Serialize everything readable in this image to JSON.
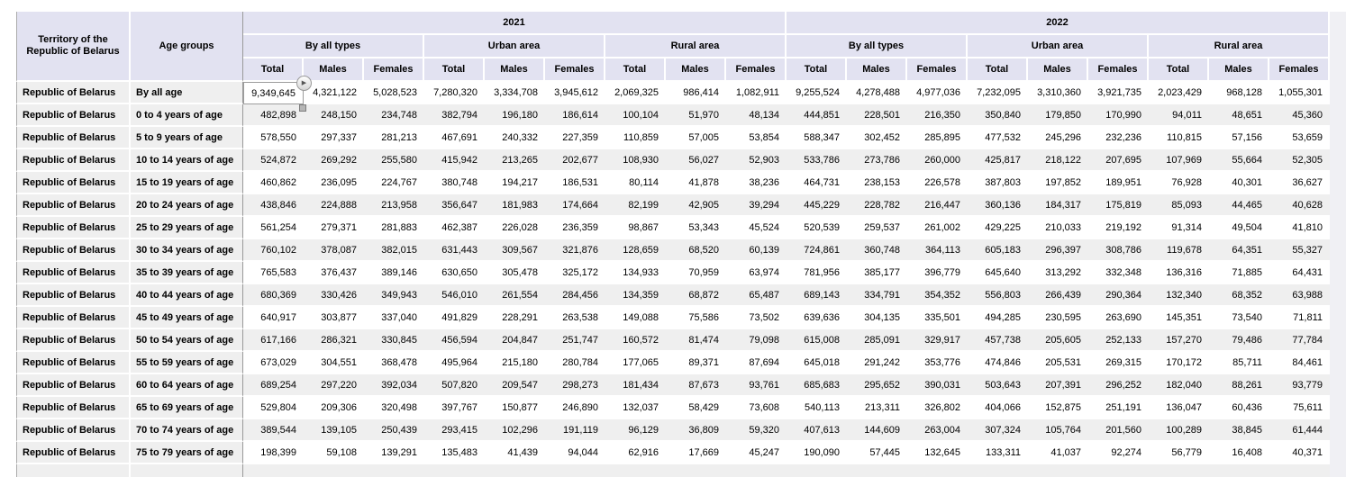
{
  "grid": {
    "corner": {
      "territory_header": "Territory of the Republic of Belarus",
      "age_groups_header": "Age groups"
    },
    "years": [
      {
        "label": "2021",
        "areas": [
          "By all types",
          "Urban area",
          "Rural area"
        ]
      },
      {
        "label": "2022",
        "areas": [
          "By all types",
          "Urban area",
          "Rural area"
        ]
      }
    ],
    "measures": [
      "Total",
      "Males",
      "Females"
    ],
    "rows": [
      {
        "territory": "Republic of Belarus",
        "age_group": "By all age",
        "values": [
          "9,349,645",
          "4,321,122",
          "5,028,523",
          "7,280,320",
          "3,334,708",
          "3,945,612",
          "2,069,325",
          "986,414",
          "1,082,911",
          "9,255,524",
          "4,278,488",
          "4,977,036",
          "7,232,095",
          "3,310,360",
          "3,921,735",
          "2,023,429",
          "968,128",
          "1,055,301"
        ]
      },
      {
        "territory": "Republic of Belarus",
        "age_group": "0 to 4 years of age",
        "values": [
          "482,898",
          "248,150",
          "234,748",
          "382,794",
          "196,180",
          "186,614",
          "100,104",
          "51,970",
          "48,134",
          "444,851",
          "228,501",
          "216,350",
          "350,840",
          "179,850",
          "170,990",
          "94,011",
          "48,651",
          "45,360"
        ]
      },
      {
        "territory": "Republic of Belarus",
        "age_group": "5 to 9 years of age",
        "values": [
          "578,550",
          "297,337",
          "281,213",
          "467,691",
          "240,332",
          "227,359",
          "110,859",
          "57,005",
          "53,854",
          "588,347",
          "302,452",
          "285,895",
          "477,532",
          "245,296",
          "232,236",
          "110,815",
          "57,156",
          "53,659"
        ]
      },
      {
        "territory": "Republic of Belarus",
        "age_group": "10 to 14 years of age",
        "values": [
          "524,872",
          "269,292",
          "255,580",
          "415,942",
          "213,265",
          "202,677",
          "108,930",
          "56,027",
          "52,903",
          "533,786",
          "273,786",
          "260,000",
          "425,817",
          "218,122",
          "207,695",
          "107,969",
          "55,664",
          "52,305"
        ]
      },
      {
        "territory": "Republic of Belarus",
        "age_group": "15 to 19 years of age",
        "values": [
          "460,862",
          "236,095",
          "224,767",
          "380,748",
          "194,217",
          "186,531",
          "80,114",
          "41,878",
          "38,236",
          "464,731",
          "238,153",
          "226,578",
          "387,803",
          "197,852",
          "189,951",
          "76,928",
          "40,301",
          "36,627"
        ]
      },
      {
        "territory": "Republic of Belarus",
        "age_group": "20 to 24 years of age",
        "values": [
          "438,846",
          "224,888",
          "213,958",
          "356,647",
          "181,983",
          "174,664",
          "82,199",
          "42,905",
          "39,294",
          "445,229",
          "228,782",
          "216,447",
          "360,136",
          "184,317",
          "175,819",
          "85,093",
          "44,465",
          "40,628"
        ]
      },
      {
        "territory": "Republic of Belarus",
        "age_group": "25 to 29 years of age",
        "values": [
          "561,254",
          "279,371",
          "281,883",
          "462,387",
          "226,028",
          "236,359",
          "98,867",
          "53,343",
          "45,524",
          "520,539",
          "259,537",
          "261,002",
          "429,225",
          "210,033",
          "219,192",
          "91,314",
          "49,504",
          "41,810"
        ]
      },
      {
        "territory": "Republic of Belarus",
        "age_group": "30 to 34 years of age",
        "values": [
          "760,102",
          "378,087",
          "382,015",
          "631,443",
          "309,567",
          "321,876",
          "128,659",
          "68,520",
          "60,139",
          "724,861",
          "360,748",
          "364,113",
          "605,183",
          "296,397",
          "308,786",
          "119,678",
          "64,351",
          "55,327"
        ]
      },
      {
        "territory": "Republic of Belarus",
        "age_group": "35 to 39 years of age",
        "values": [
          "765,583",
          "376,437",
          "389,146",
          "630,650",
          "305,478",
          "325,172",
          "134,933",
          "70,959",
          "63,974",
          "781,956",
          "385,177",
          "396,779",
          "645,640",
          "313,292",
          "332,348",
          "136,316",
          "71,885",
          "64,431"
        ]
      },
      {
        "territory": "Republic of Belarus",
        "age_group": "40 to 44 years of age",
        "values": [
          "680,369",
          "330,426",
          "349,943",
          "546,010",
          "261,554",
          "284,456",
          "134,359",
          "68,872",
          "65,487",
          "689,143",
          "334,791",
          "354,352",
          "556,803",
          "266,439",
          "290,364",
          "132,340",
          "68,352",
          "63,988"
        ]
      },
      {
        "territory": "Republic of Belarus",
        "age_group": "45 to 49 years of age",
        "values": [
          "640,917",
          "303,877",
          "337,040",
          "491,829",
          "228,291",
          "263,538",
          "149,088",
          "75,586",
          "73,502",
          "639,636",
          "304,135",
          "335,501",
          "494,285",
          "230,595",
          "263,690",
          "145,351",
          "73,540",
          "71,811"
        ]
      },
      {
        "territory": "Republic of Belarus",
        "age_group": "50 to 54 years of age",
        "values": [
          "617,166",
          "286,321",
          "330,845",
          "456,594",
          "204,847",
          "251,747",
          "160,572",
          "81,474",
          "79,098",
          "615,008",
          "285,091",
          "329,917",
          "457,738",
          "205,605",
          "252,133",
          "157,270",
          "79,486",
          "77,784"
        ]
      },
      {
        "territory": "Republic of Belarus",
        "age_group": "55 to 59 years of age",
        "values": [
          "673,029",
          "304,551",
          "368,478",
          "495,964",
          "215,180",
          "280,784",
          "177,065",
          "89,371",
          "87,694",
          "645,018",
          "291,242",
          "353,776",
          "474,846",
          "205,531",
          "269,315",
          "170,172",
          "85,711",
          "84,461"
        ]
      },
      {
        "territory": "Republic of Belarus",
        "age_group": "60 to 64 years of age",
        "values": [
          "689,254",
          "297,220",
          "392,034",
          "507,820",
          "209,547",
          "298,273",
          "181,434",
          "87,673",
          "93,761",
          "685,683",
          "295,652",
          "390,031",
          "503,643",
          "207,391",
          "296,252",
          "182,040",
          "88,261",
          "93,779"
        ]
      },
      {
        "territory": "Republic of Belarus",
        "age_group": "65 to 69 years of age",
        "values": [
          "529,804",
          "209,306",
          "320,498",
          "397,767",
          "150,877",
          "246,890",
          "132,037",
          "58,429",
          "73,608",
          "540,113",
          "213,311",
          "326,802",
          "404,066",
          "152,875",
          "251,191",
          "136,047",
          "60,436",
          "75,611"
        ]
      },
      {
        "territory": "Republic of Belarus",
        "age_group": "70 to 74 years of age",
        "values": [
          "389,544",
          "139,105",
          "250,439",
          "293,415",
          "102,296",
          "191,119",
          "96,129",
          "36,809",
          "59,320",
          "407,613",
          "144,609",
          "263,004",
          "307,324",
          "105,764",
          "201,560",
          "100,289",
          "38,845",
          "61,444"
        ]
      },
      {
        "territory": "Republic of Belarus",
        "age_group": "75 to 79 years of age",
        "values": [
          "198,399",
          "59,108",
          "139,291",
          "135,483",
          "41,439",
          "94,044",
          "62,916",
          "17,669",
          "45,247",
          "190,090",
          "57,445",
          "132,645",
          "133,311",
          "41,037",
          "92,274",
          "56,779",
          "16,408",
          "40,371"
        ]
      }
    ],
    "selected_cell": {
      "row_index": 0,
      "value_index": 0
    },
    "colors": {
      "header_bg": "#e2e2f1",
      "row_bg": "#ffffff",
      "row_alt_bg": "#efefef",
      "pane_border": "#999999",
      "selection_border": "#9c9c9c",
      "filler_bg": "#f0f0f4"
    }
  },
  "icons": {
    "expand_button": "▶"
  }
}
